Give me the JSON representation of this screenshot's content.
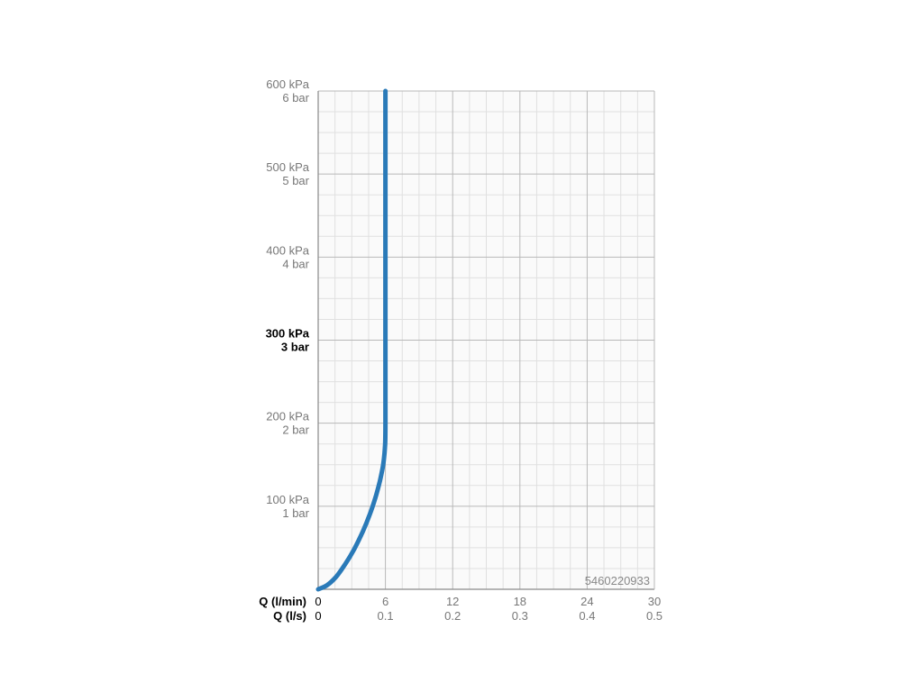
{
  "chart_data": {
    "type": "line",
    "code": "5460220933",
    "x_primary": {
      "label": "Q (l/min)",
      "ticks": [
        "0",
        "6",
        "12",
        "18",
        "24",
        "30"
      ],
      "range": [
        0,
        30
      ]
    },
    "x_secondary": {
      "label": "Q (l/s)",
      "ticks": [
        "0",
        "0.1",
        "0.2",
        "0.3",
        "0.4",
        "0.5"
      ]
    },
    "y_axis": {
      "range": [
        0,
        600
      ],
      "ticks": [
        {
          "value": 100,
          "kpa": "100 kPa",
          "bar": "1 bar",
          "bold": false
        },
        {
          "value": 200,
          "kpa": "200 kPa",
          "bar": "2 bar",
          "bold": false
        },
        {
          "value": 300,
          "kpa": "300 kPa",
          "bar": "3 bar",
          "bold": true
        },
        {
          "value": 400,
          "kpa": "400 kPa",
          "bar": "4 bar",
          "bold": false
        },
        {
          "value": 500,
          "kpa": "500 kPa",
          "bar": "5 bar",
          "bold": false
        },
        {
          "value": 600,
          "kpa": "600 kPa",
          "bar": "6 bar",
          "bold": false
        }
      ]
    },
    "grid": true,
    "series": [
      {
        "color": "#2a7ab8",
        "points": [
          [
            0,
            0
          ],
          [
            0.8,
            5
          ],
          [
            1.6,
            15
          ],
          [
            2.4,
            30
          ],
          [
            3.2,
            48
          ],
          [
            4.0,
            70
          ],
          [
            4.6,
            90
          ],
          [
            5.1,
            110
          ],
          [
            5.5,
            130
          ],
          [
            5.8,
            150
          ],
          [
            5.95,
            170
          ],
          [
            6.0,
            195
          ],
          [
            6.0,
            300
          ],
          [
            6.0,
            600
          ]
        ]
      }
    ]
  }
}
